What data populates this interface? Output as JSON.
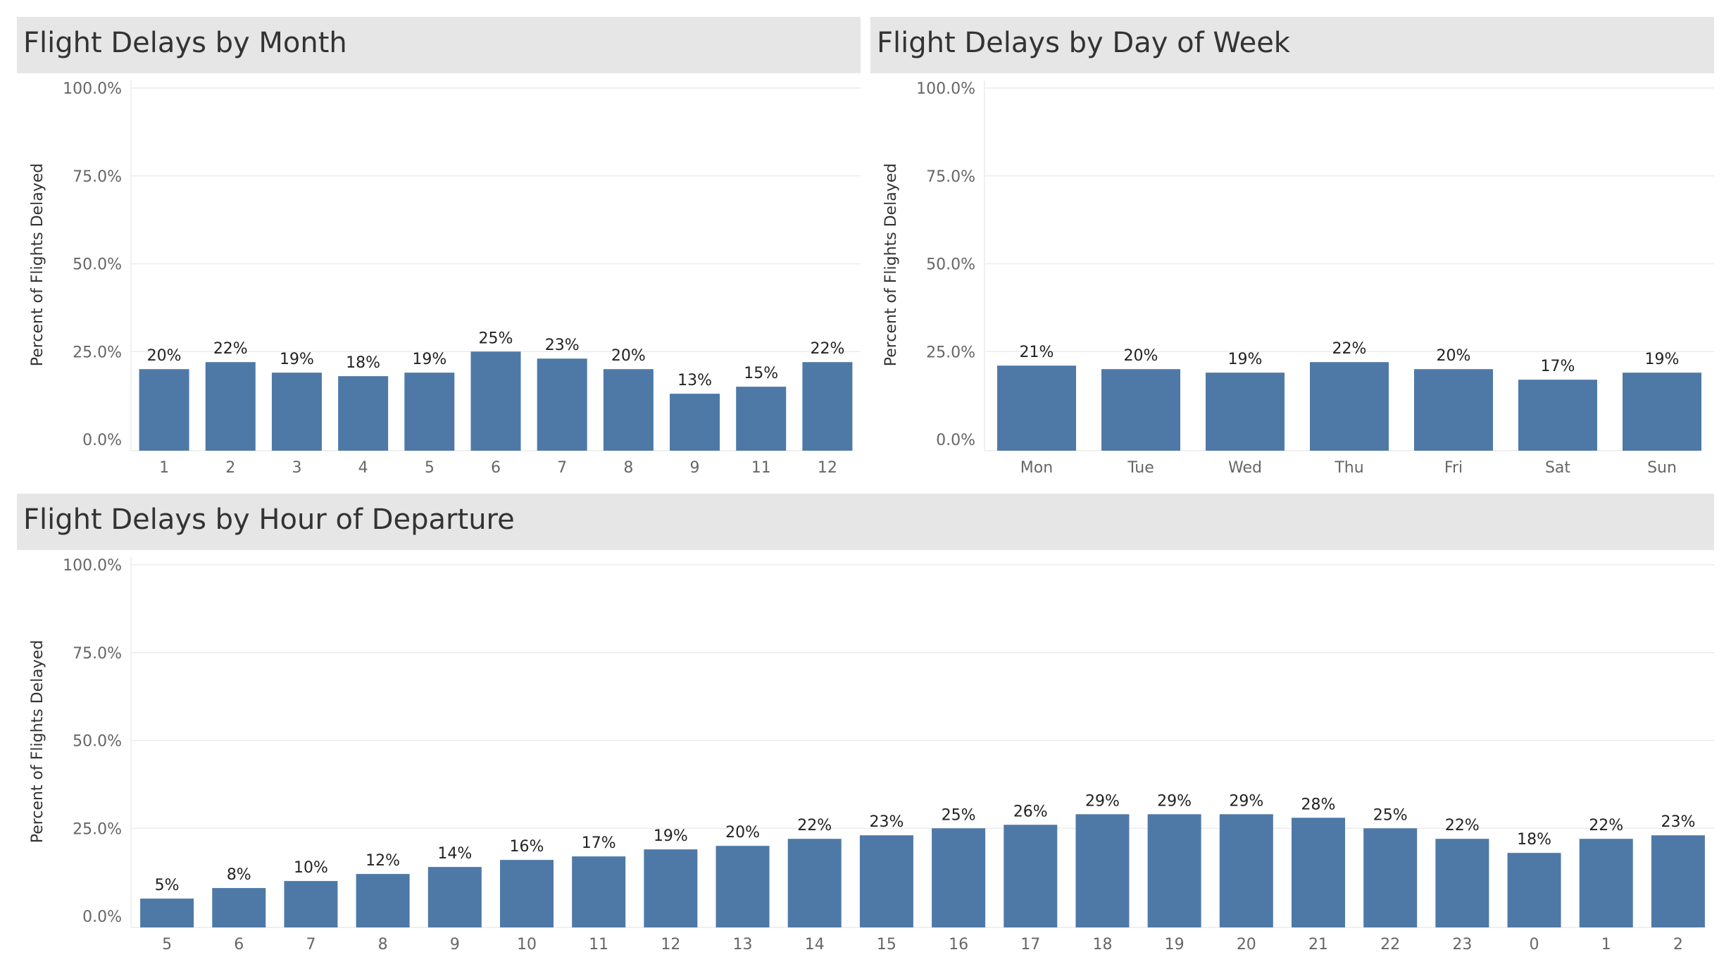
{
  "colors": {
    "bar": "#4e79a7",
    "header_bg": "#e6e6e6",
    "gridline": "#ececec"
  },
  "chart_data": [
    {
      "id": "month",
      "type": "bar",
      "title": "Flight Delays by Month",
      "ylabel": "Percent of Flights Delayed",
      "xlabel": "",
      "ylim": [
        0,
        100
      ],
      "yticks": [
        "0.0%",
        "25.0%",
        "50.0%",
        "75.0%",
        "100.0%"
      ],
      "grid": true,
      "categories": [
        "1",
        "2",
        "3",
        "4",
        "5",
        "6",
        "7",
        "8",
        "9",
        "11",
        "12"
      ],
      "values": [
        20,
        22,
        19,
        18,
        19,
        25,
        23,
        20,
        13,
        15,
        22
      ],
      "labels": [
        "20%",
        "22%",
        "19%",
        "18%",
        "19%",
        "25%",
        "23%",
        "20%",
        "13%",
        "15%",
        "22%"
      ]
    },
    {
      "id": "weekday",
      "type": "bar",
      "title": "Flight Delays by Day of Week",
      "ylabel": "Percent of Flights Delayed",
      "xlabel": "",
      "ylim": [
        0,
        100
      ],
      "yticks": [
        "0.0%",
        "25.0%",
        "50.0%",
        "75.0%",
        "100.0%"
      ],
      "grid": true,
      "categories": [
        "Mon",
        "Tue",
        "Wed",
        "Thu",
        "Fri",
        "Sat",
        "Sun"
      ],
      "values": [
        21,
        20,
        19,
        22,
        20,
        17,
        19
      ],
      "labels": [
        "21%",
        "20%",
        "19%",
        "22%",
        "20%",
        "17%",
        "19%"
      ]
    },
    {
      "id": "hour",
      "type": "bar",
      "title": "Flight Delays by Hour of Departure",
      "ylabel": "Percent of Flights Delayed",
      "xlabel": "",
      "ylim": [
        0,
        100
      ],
      "yticks": [
        "0.0%",
        "25.0%",
        "50.0%",
        "75.0%",
        "100.0%"
      ],
      "grid": true,
      "categories": [
        "5",
        "6",
        "7",
        "8",
        "9",
        "10",
        "11",
        "12",
        "13",
        "14",
        "15",
        "16",
        "17",
        "18",
        "19",
        "20",
        "21",
        "22",
        "23",
        "0",
        "1",
        "2"
      ],
      "values": [
        5,
        8,
        10,
        12,
        14,
        16,
        17,
        19,
        20,
        22,
        23,
        25,
        26,
        29,
        29,
        29,
        28,
        25,
        22,
        18,
        22,
        23
      ],
      "labels": [
        "5%",
        "8%",
        "10%",
        "12%",
        "14%",
        "16%",
        "17%",
        "19%",
        "20%",
        "22%",
        "23%",
        "25%",
        "26%",
        "29%",
        "29%",
        "29%",
        "28%",
        "25%",
        "22%",
        "18%",
        "22%",
        "23%"
      ]
    }
  ]
}
